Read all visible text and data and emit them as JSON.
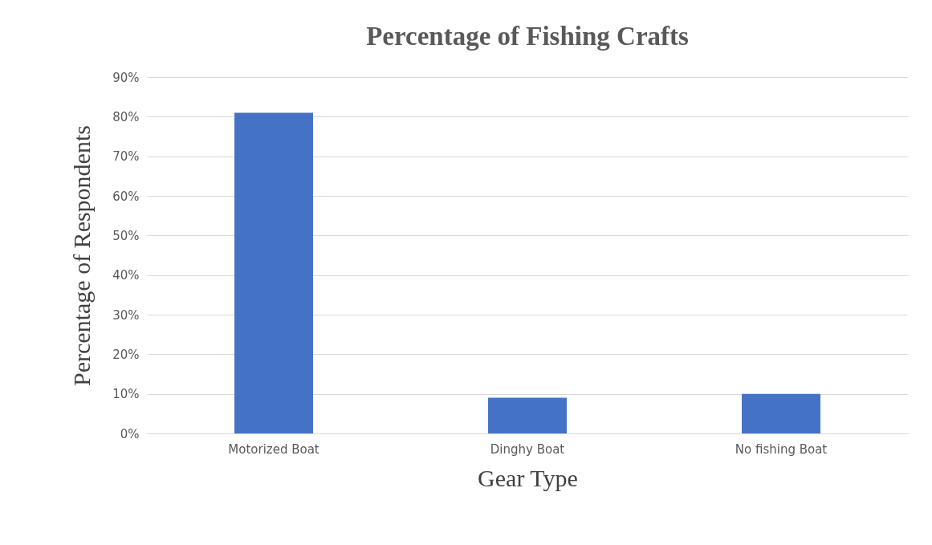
{
  "chart_data": {
    "type": "bar",
    "title": "Percentage of Fishing Crafts",
    "xlabel": "Gear Type",
    "ylabel": "Percentage of Respondents",
    "categories": [
      "Motorized Boat",
      "Dinghy Boat",
      "No fishing Boat"
    ],
    "series": [
      {
        "color": "#4472c4",
        "values": [
          81,
          9,
          10
        ]
      }
    ],
    "ylim": [
      0,
      90
    ],
    "yticks": [
      {
        "value": 0,
        "label": "0%"
      },
      {
        "value": 10,
        "label": "10%"
      },
      {
        "value": 20,
        "label": "20%"
      },
      {
        "value": 30,
        "label": "30%"
      },
      {
        "value": 40,
        "label": "40%"
      },
      {
        "value": 50,
        "label": "50%"
      },
      {
        "value": 60,
        "label": "60%"
      },
      {
        "value": 70,
        "label": "70%"
      },
      {
        "value": 80,
        "label": "80%"
      },
      {
        "value": 90,
        "label": "90%"
      }
    ],
    "grid": "y"
  }
}
